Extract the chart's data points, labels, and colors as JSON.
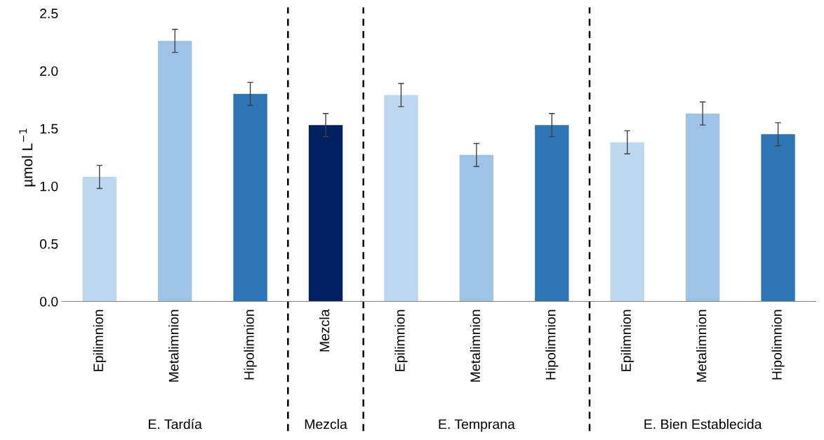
{
  "chart_data": {
    "type": "bar",
    "ylabel": "µmol L$^{−1}$",
    "categories": [
      "Epilimnion",
      "Metalimnion",
      "Hipolimnion",
      "Mezcla",
      "Epilimnion",
      "Metalimnion",
      "Hipolimnion",
      "Epilimnion",
      "Metalimnion",
      "Hipolimnion"
    ],
    "values": [
      1.08,
      2.26,
      1.8,
      1.53,
      1.79,
      1.27,
      1.53,
      1.38,
      1.63,
      1.45
    ],
    "errors": [
      0.1,
      0.1,
      0.1,
      0.1,
      0.1,
      0.1,
      0.1,
      0.1,
      0.1,
      0.1
    ],
    "colors": [
      "#bdd7ee",
      "#9dc3e6",
      "#2e75b6",
      "#002060",
      "#bdd7ee",
      "#9dc3e6",
      "#2e75b6",
      "#bdd7ee",
      "#9dc3e6",
      "#2e75b6"
    ],
    "ylim": [
      0,
      2.5
    ],
    "yticks": [
      {
        "value": 0,
        "label": "0.0"
      },
      {
        "value": 0.5,
        "label": "0.5"
      },
      {
        "value": 1,
        "label": "1.0"
      },
      {
        "value": 1.5,
        "label": "1.5"
      },
      {
        "value": 2,
        "label": "2.0"
      },
      {
        "value": 2.5,
        "label": "2.5"
      }
    ],
    "annotations": [
      "E. Tardía",
      "Mezcla",
      "E. Temprana",
      "E. Bien Establecida"
    ],
    "grid": false,
    "legend": false
  }
}
